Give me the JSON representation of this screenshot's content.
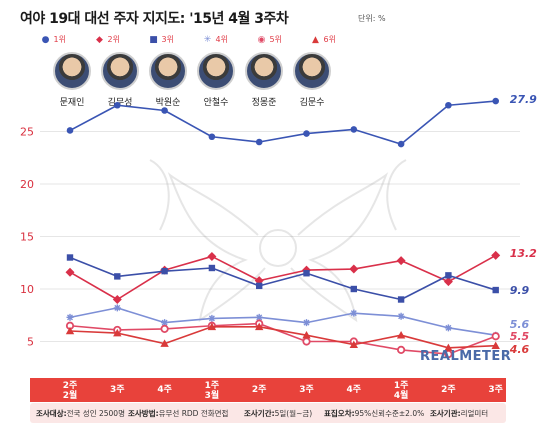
{
  "header": {
    "title": "여야 19대 대선 주자 지지도: '15년 4월 3주차",
    "unit": "단위: %"
  },
  "candidates": [
    {
      "rank": "1위",
      "name": "문재인"
    },
    {
      "rank": "2위",
      "name": "김무성"
    },
    {
      "rank": "3위",
      "name": "박원순"
    },
    {
      "rank": "4위",
      "name": "안철수"
    },
    {
      "rank": "5위",
      "name": "정몽준"
    },
    {
      "rank": "6위",
      "name": "김문수"
    }
  ],
  "chart_data": {
    "type": "line",
    "categories": [
      "2주\n2월",
      "3주",
      "4주",
      "1주\n3월",
      "2주",
      "3주",
      "4주",
      "1주\n4월",
      "2주",
      "3주"
    ],
    "yticks": [
      5,
      10,
      15,
      20,
      25
    ],
    "ylim": [
      3,
      30
    ],
    "grid": true,
    "series": [
      {
        "name": "문재인",
        "color": "#3a55b4",
        "marker": "circle",
        "values": [
          25.1,
          27.5,
          27.0,
          24.5,
          24.0,
          24.8,
          25.2,
          23.8,
          27.5,
          27.9
        ],
        "end_label": "27.9"
      },
      {
        "name": "김무성",
        "color": "#d9304a",
        "marker": "diamond",
        "values": [
          11.6,
          9.0,
          11.8,
          13.1,
          10.8,
          11.8,
          11.9,
          12.7,
          10.7,
          13.2
        ],
        "end_label": "13.2"
      },
      {
        "name": "박원순",
        "color": "#3b4fa8",
        "marker": "square",
        "values": [
          13.0,
          11.2,
          11.7,
          12.0,
          10.3,
          11.5,
          10.0,
          9.0,
          11.3,
          9.9
        ],
        "end_label": "9.9"
      },
      {
        "name": "안철수",
        "color": "#7d8fd6",
        "marker": "asterisk",
        "values": [
          7.3,
          8.2,
          6.8,
          7.2,
          7.3,
          6.8,
          7.7,
          7.4,
          6.3,
          5.6
        ],
        "end_label": "5.6"
      },
      {
        "name": "정몽준",
        "color": "#e04a66",
        "marker": "ring",
        "values": [
          6.5,
          6.1,
          6.2,
          6.5,
          6.7,
          5.0,
          5.0,
          4.2,
          3.8,
          5.5
        ],
        "end_label": "5.5"
      },
      {
        "name": "김문수",
        "color": "#d93a3a",
        "marker": "triangle",
        "values": [
          6.0,
          5.8,
          4.8,
          6.4,
          6.4,
          5.6,
          4.7,
          5.6,
          4.4,
          4.6
        ],
        "end_label": "4.6"
      }
    ]
  },
  "footer": {
    "items": [
      {
        "label": "조사대상:",
        "value": "전국 성인 2500명"
      },
      {
        "label": "조사방법:",
        "value": "유무선 RDD 전화면접"
      },
      {
        "label": "조사기간:",
        "value": "5일(월~금)"
      },
      {
        "label": "표집오차:",
        "value": "95%신뢰수준±2.0%"
      },
      {
        "label": "조사기관:",
        "value": "리얼미터"
      }
    ]
  },
  "watermark": "REALMETER"
}
